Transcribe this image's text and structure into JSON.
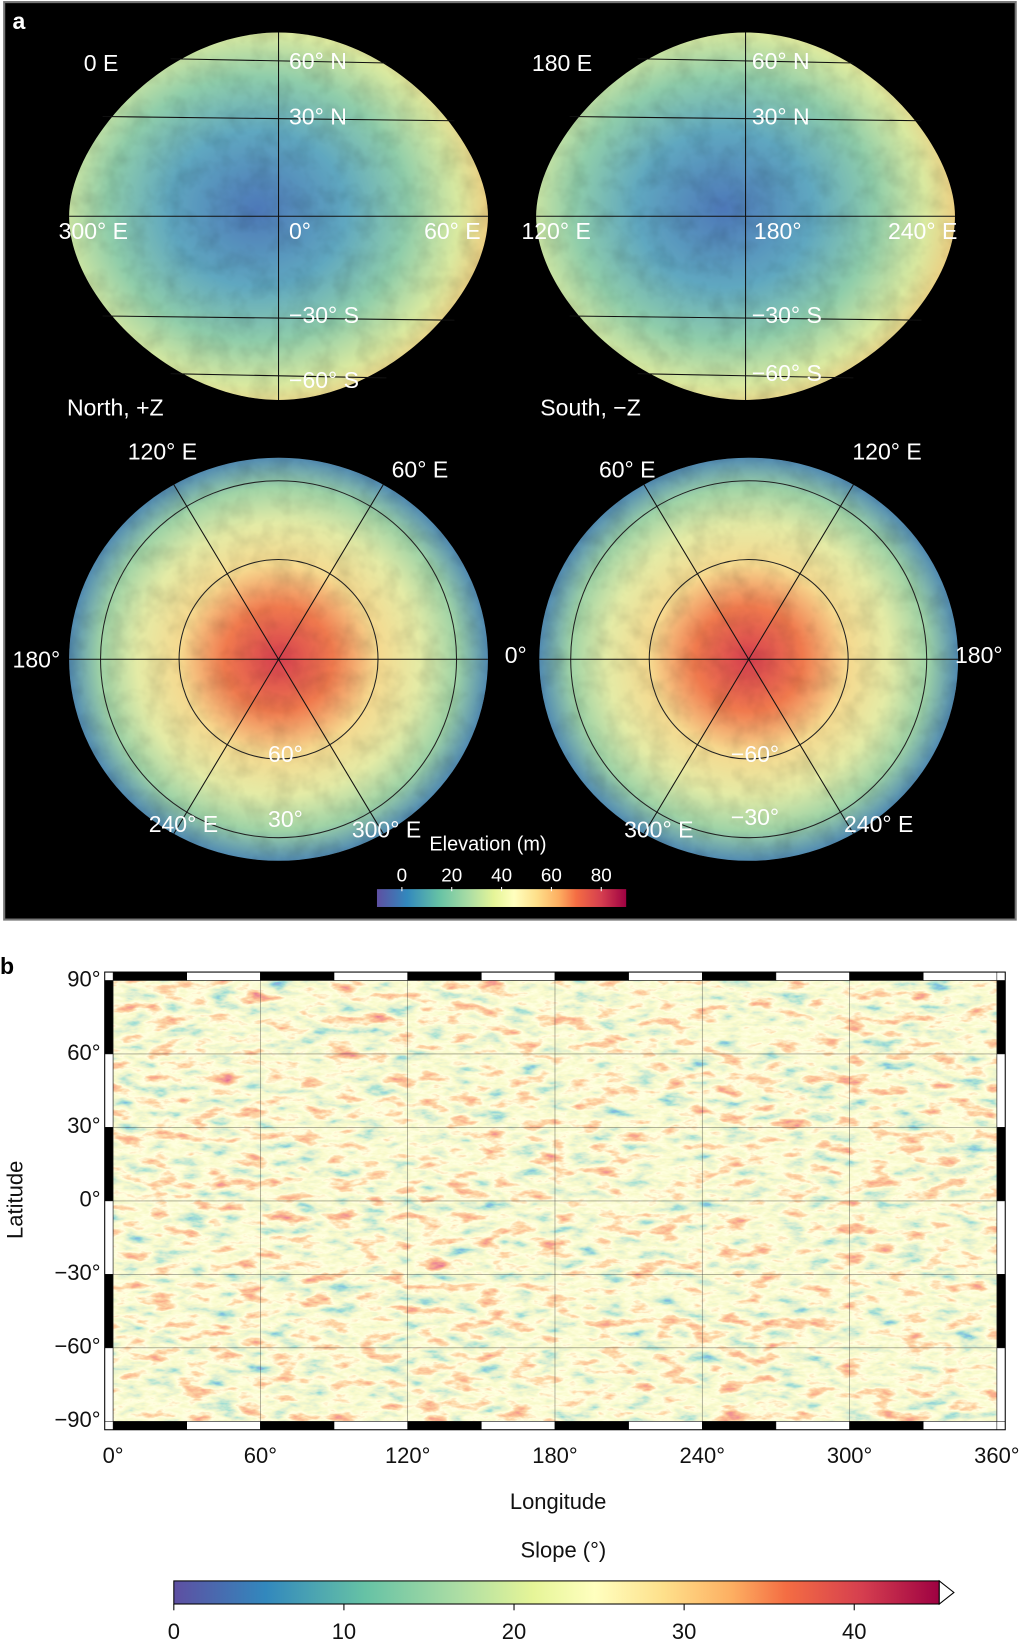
{
  "panel_a": {
    "label": "a",
    "views": [
      {
        "annotations": [
          "0 E",
          "60° N",
          "30° N",
          "300° E",
          "0°",
          "60° E",
          "−30° S",
          "−60° S"
        ]
      },
      {
        "annotations": [
          "180 E",
          "60° N",
          "30° N",
          "120° E",
          "180°",
          "240° E",
          "−30° S",
          "−60° S"
        ]
      },
      {
        "annotations": [
          "North, +Z",
          "120° E",
          "60° E",
          "180°",
          "60°",
          "240° E",
          "30°",
          "300° E"
        ]
      },
      {
        "annotations": [
          "South, −Z",
          "60° E",
          "120° E",
          "0°",
          "180°",
          "−60°",
          "300° E",
          "−30°",
          "240° E"
        ]
      }
    ],
    "colorbar": {
      "title": "Elevation (m)",
      "lim": [
        -10,
        90
      ],
      "ticks": [
        0,
        20,
        40,
        60,
        80
      ]
    }
  },
  "panel_b": {
    "label": "b",
    "xlabel": "Longitude",
    "ylabel": "Latitude",
    "xlim": [
      0,
      360
    ],
    "ylim": [
      -90,
      90
    ],
    "xticks": [
      {
        "value": 0,
        "label": "0°"
      },
      {
        "value": 60,
        "label": "60°"
      },
      {
        "value": 120,
        "label": "120°"
      },
      {
        "value": 180,
        "label": "180°"
      },
      {
        "value": 240,
        "label": "240°"
      },
      {
        "value": 300,
        "label": "300°"
      },
      {
        "value": 360,
        "label": "360°"
      }
    ],
    "yticks": [
      {
        "value": 90,
        "label": "90°"
      },
      {
        "value": 60,
        "label": "60°"
      },
      {
        "value": 30,
        "label": "30°"
      },
      {
        "value": 0,
        "label": "0°"
      },
      {
        "value": -30,
        "label": "−30°"
      },
      {
        "value": -60,
        "label": "−60°"
      },
      {
        "value": -90,
        "label": "−90°"
      }
    ],
    "colorbar": {
      "title": "Slope (°)",
      "lim": [
        0,
        45
      ],
      "ticks": [
        0,
        10,
        20,
        30,
        40
      ]
    }
  }
}
